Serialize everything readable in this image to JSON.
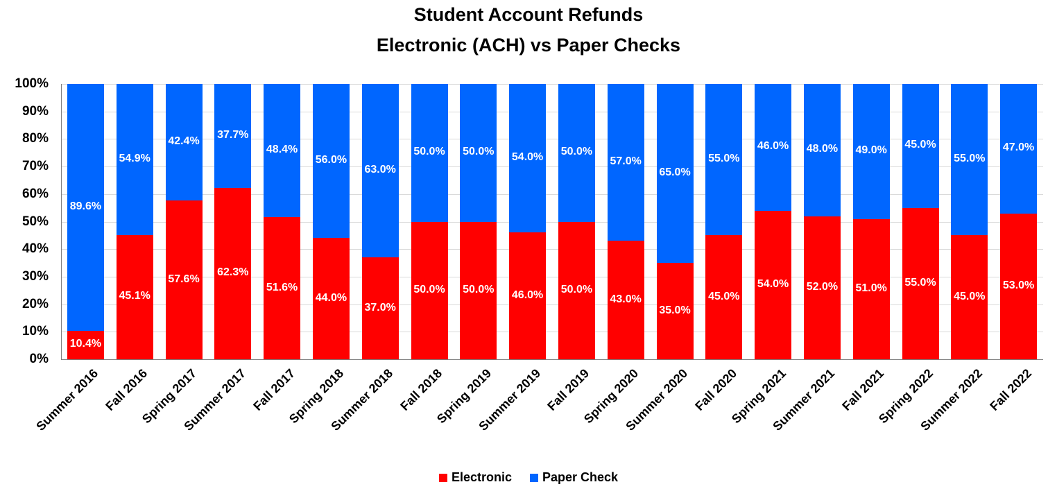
{
  "chart_data": {
    "type": "bar",
    "stacked": true,
    "title": "Student Account Refunds",
    "subtitle": "Electronic (ACH) vs Paper Checks",
    "xlabel": "",
    "ylabel": "",
    "ylim": [
      0,
      100
    ],
    "yticks": [
      "0%",
      "10%",
      "20%",
      "30%",
      "40%",
      "50%",
      "60%",
      "70%",
      "80%",
      "90%",
      "100%"
    ],
    "grid": true,
    "legend_position": "bottom",
    "categories": [
      "Summer 2016",
      "Fall 2016",
      "Spring 2017",
      "Summer 2017",
      "Fall 2017",
      "Spring 2018",
      "Summer 2018",
      "Fall 2018",
      "Spring 2019",
      "Summer 2019",
      "Fall 2019",
      "Spring 2020",
      "Summer 2020",
      "Fall 2020",
      "Spring 2021",
      "Summer 2021",
      "Fall 2021",
      "Spring 2022",
      "Summer 2022",
      "Fall 2022"
    ],
    "series": [
      {
        "name": "Electronic",
        "color": "#ff0000",
        "values": [
          10.4,
          45.1,
          57.6,
          62.3,
          51.6,
          44.0,
          37.0,
          50.0,
          50.0,
          46.0,
          50.0,
          43.0,
          35.0,
          45.0,
          54.0,
          52.0,
          51.0,
          55.0,
          45.0,
          53.0
        ],
        "labels": [
          "10.4%",
          "45.1%",
          "57.6%",
          "62.3%",
          "51.6%",
          "44.0%",
          "37.0%",
          "50.0%",
          "50.0%",
          "46.0%",
          "50.0%",
          "43.0%",
          "35.0%",
          "45.0%",
          "54.0%",
          "52.0%",
          "51.0%",
          "55.0%",
          "45.0%",
          "53.0%"
        ]
      },
      {
        "name": "Paper Check",
        "color": "#0066ff",
        "values": [
          89.6,
          54.9,
          42.4,
          37.7,
          48.4,
          56.0,
          63.0,
          50.0,
          50.0,
          54.0,
          50.0,
          57.0,
          65.0,
          55.0,
          46.0,
          48.0,
          49.0,
          45.0,
          55.0,
          47.0
        ],
        "labels": [
          "89.6%",
          "54.9%",
          "42.4%",
          "37.7%",
          "48.4%",
          "56.0%",
          "63.0%",
          "50.0%",
          "50.0%",
          "54.0%",
          "50.0%",
          "57.0%",
          "65.0%",
          "55.0%",
          "46.0%",
          "48.0%",
          "49.0%",
          "45.0%",
          "55.0%",
          "47.0%"
        ]
      }
    ]
  },
  "legend": {
    "items": [
      {
        "label": "Electronic",
        "color": "#ff0000"
      },
      {
        "label": "Paper Check",
        "color": "#0066ff"
      }
    ]
  }
}
